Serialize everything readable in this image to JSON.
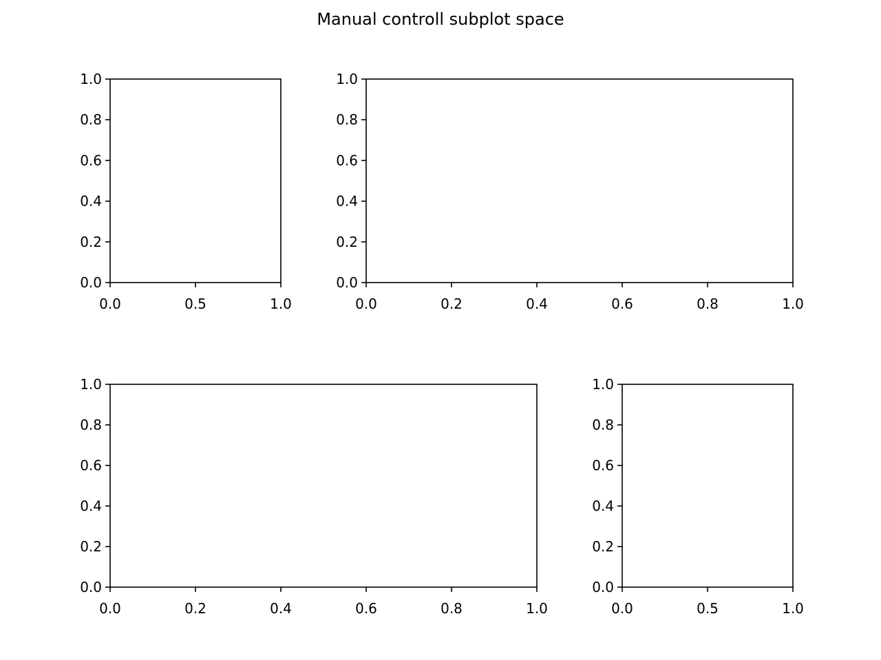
{
  "title": "Manual controll subplot space",
  "chart_data": [
    {
      "type": "line",
      "series": [],
      "title": "",
      "xlabel": "",
      "ylabel": "",
      "xlim": [
        0,
        1
      ],
      "ylim": [
        0,
        1
      ],
      "xticks": [
        "0.0",
        "0.5",
        "1.0"
      ],
      "yticks": [
        "0.0",
        "0.2",
        "0.4",
        "0.6",
        "0.8",
        "1.0"
      ],
      "grid": false
    },
    {
      "type": "line",
      "series": [],
      "title": "",
      "xlabel": "",
      "ylabel": "",
      "xlim": [
        0,
        1
      ],
      "ylim": [
        0,
        1
      ],
      "xticks": [
        "0.0",
        "0.2",
        "0.4",
        "0.6",
        "0.8",
        "1.0"
      ],
      "yticks": [
        "0.0",
        "0.2",
        "0.4",
        "0.6",
        "0.8",
        "1.0"
      ],
      "grid": false
    },
    {
      "type": "line",
      "series": [],
      "title": "",
      "xlabel": "",
      "ylabel": "",
      "xlim": [
        0,
        1
      ],
      "ylim": [
        0,
        1
      ],
      "xticks": [
        "0.0",
        "0.2",
        "0.4",
        "0.6",
        "0.8",
        "1.0"
      ],
      "yticks": [
        "0.0",
        "0.2",
        "0.4",
        "0.6",
        "0.8",
        "1.0"
      ],
      "grid": false
    },
    {
      "type": "line",
      "series": [],
      "title": "",
      "xlabel": "",
      "ylabel": "",
      "xlim": [
        0,
        1
      ],
      "ylim": [
        0,
        1
      ],
      "xticks": [
        "0.0",
        "0.5",
        "1.0"
      ],
      "yticks": [
        "0.0",
        "0.2",
        "0.4",
        "0.6",
        "0.8",
        "1.0"
      ],
      "grid": false
    }
  ]
}
